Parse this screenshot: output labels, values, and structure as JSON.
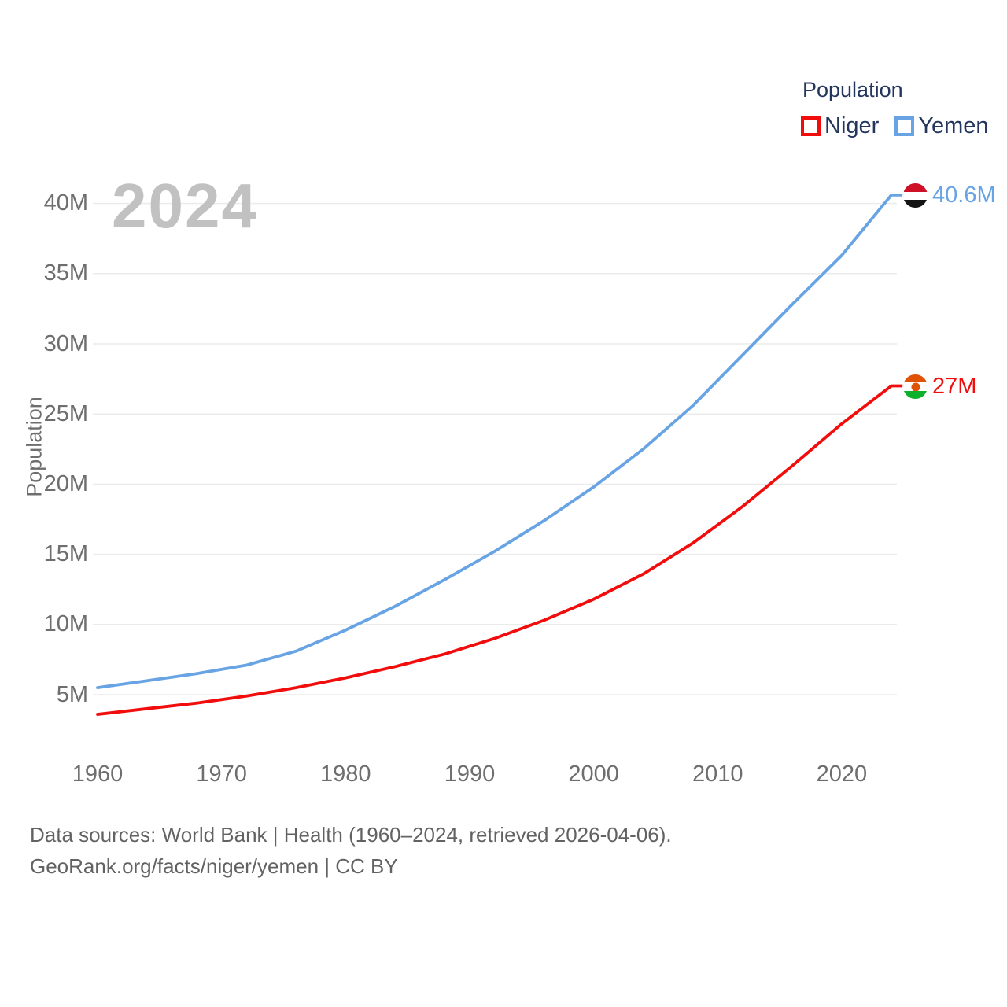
{
  "watermark_year": "2024",
  "legend": {
    "title": "Population",
    "items": [
      {
        "label": "Niger",
        "color": "#f20d0d"
      },
      {
        "label": "Yemen",
        "color": "#68a4e4"
      }
    ]
  },
  "axes": {
    "y_title": "Population"
  },
  "end_labels": {
    "yemen": "40.6M",
    "niger": "27M"
  },
  "icons": {
    "yemen-flag-icon": "circle with horizontal red, white, black stripes",
    "niger-flag-icon": "circle with horizontal orange, white, green stripes and central orange disc"
  },
  "footer": {
    "line1": "Data sources: World Bank | Health (1960–2024, retrieved 2026-04-06).",
    "line2": "GeoRank.org/facts/niger/yemen | CC BY"
  },
  "colors": {
    "gridline": "#ebebeb",
    "tick_text": "#6e6e6e",
    "legend_text": "#24365c",
    "watermark": "#c1c1c1",
    "footer_text": "#626262"
  },
  "chart_data": {
    "type": "line",
    "title": "Population",
    "ylabel": "Population",
    "xlabel": "",
    "grid": true,
    "legend_position": "top-right",
    "xlim": [
      1960,
      2024
    ],
    "ylim": [
      2.5,
      42
    ],
    "x": [
      1960,
      1964,
      1968,
      1972,
      1976,
      1980,
      1984,
      1988,
      1992,
      1996,
      2000,
      2004,
      2008,
      2012,
      2016,
      2020,
      2024
    ],
    "x_ticks": [
      1960,
      1970,
      1980,
      1990,
      2000,
      2010,
      2020
    ],
    "y_ticks": [
      {
        "value": 5,
        "label": "5M"
      },
      {
        "value": 10,
        "label": "10M"
      },
      {
        "value": 15,
        "label": "15M"
      },
      {
        "value": 20,
        "label": "20M"
      },
      {
        "value": 25,
        "label": "25M"
      },
      {
        "value": 30,
        "label": "30M"
      },
      {
        "value": 35,
        "label": "35M"
      },
      {
        "value": 40,
        "label": "40M"
      }
    ],
    "series": [
      {
        "name": "Niger",
        "color": "#f20d0d",
        "values": [
          3.6,
          4.0,
          4.4,
          4.9,
          5.5,
          6.2,
          7.0,
          7.9,
          9.0,
          10.3,
          11.8,
          13.6,
          15.8,
          18.4,
          21.3,
          24.3,
          27.0
        ],
        "end_label": "27M",
        "flag_colors": [
          "#e05206",
          "#ffffff",
          "#0db02b"
        ],
        "flag_disc": "#e05206"
      },
      {
        "name": "Yemen",
        "color": "#68a4e4",
        "values": [
          5.5,
          6.0,
          6.5,
          7.1,
          8.1,
          9.6,
          11.3,
          13.2,
          15.2,
          17.4,
          19.8,
          22.5,
          25.6,
          29.2,
          32.8,
          36.3,
          40.6
        ],
        "end_label": "40.6M",
        "flag_colors": [
          "#ce1126",
          "#ffffff",
          "#141414"
        ],
        "flag_disc": null
      }
    ]
  }
}
